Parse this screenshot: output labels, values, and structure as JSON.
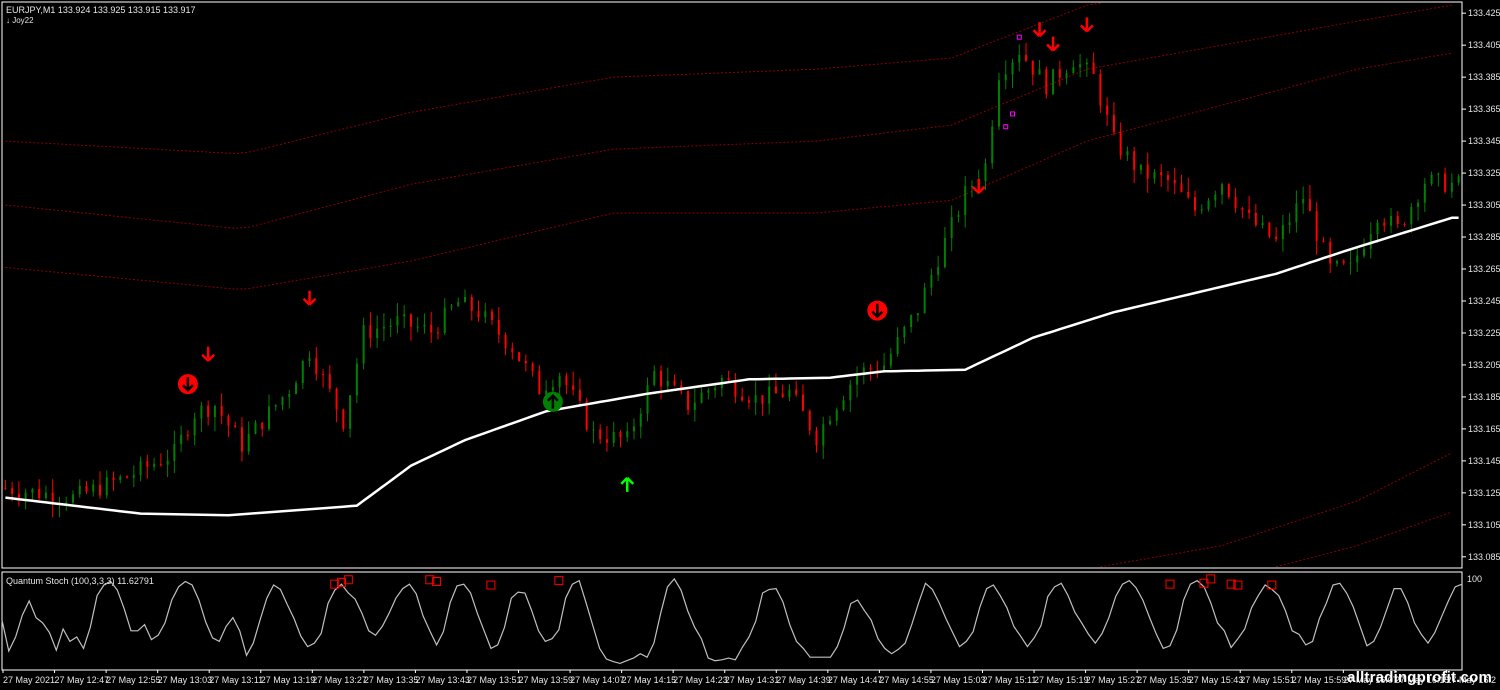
{
  "header": {
    "symbol_line": "EURJPY,M1  133.924 133.925 133.915 133.917",
    "indicator_name": "↓ Joy22"
  },
  "sub_window": {
    "title": "Quantum Stoch (100,3,3,3) 11.62791",
    "scale_max_label": "100"
  },
  "watermark": "alltradingprofit.com",
  "colors": {
    "background": "#000000",
    "bull": "#008000",
    "bear": "#ff0000",
    "moving_average": "#ffffff",
    "bands": "#8b0000",
    "oscillator": "#c0c0c0",
    "arrow_up": "#00ff00",
    "arrow_down": "#ff0000",
    "signal_box": "#ff00ff",
    "axis_text": "#e6e6e6"
  },
  "chart_data": [
    {
      "type": "candlestick",
      "title": "EURJPY,M1",
      "y_ticks": [
        "133.425",
        "133.405",
        "133.385",
        "133.365",
        "133.345",
        "133.325",
        "133.305",
        "133.285",
        "133.265",
        "133.245",
        "133.225",
        "133.205",
        "133.185",
        "133.165",
        "133.145",
        "133.125",
        "133.105",
        "133.085"
      ],
      "ylim": [
        133.078,
        133.432
      ],
      "x_ticks": [
        "27 May 2021",
        "27 May 12:47",
        "27 May 12:55",
        "27 May 13:03",
        "27 May 13:11",
        "27 May 13:19",
        "27 May 13:27",
        "27 May 13:35",
        "27 May 13:43",
        "27 May 13:51",
        "27 May 13:59",
        "27 May 14:07",
        "27 May 14:15",
        "27 May 14:23",
        "27 May 14:31",
        "27 May 14:39",
        "27 May 14:47",
        "27 May 14:55",
        "27 May 15:03",
        "27 May 15:11",
        "27 May 15:19",
        "27 May 15:27",
        "27 May 15:35",
        "27 May 15:43",
        "27 May 15:51",
        "27 May 15:59",
        "27 May 16:07",
        "27 May 16:15",
        "27 May 16:2"
      ],
      "bar_count": 216,
      "price_path": [
        [
          0,
          133.128
        ],
        [
          10,
          133.122
        ],
        [
          18,
          133.135
        ],
        [
          25,
          133.15
        ],
        [
          28,
          133.175
        ],
        [
          31,
          133.18
        ],
        [
          35,
          133.155
        ],
        [
          42,
          133.19
        ],
        [
          45,
          133.214
        ],
        [
          50,
          133.17
        ],
        [
          53,
          133.225
        ],
        [
          58,
          133.232
        ],
        [
          63,
          133.226
        ],
        [
          67,
          133.244
        ],
        [
          70,
          133.238
        ],
        [
          75,
          133.216
        ],
        [
          79,
          133.19
        ],
        [
          82,
          133.2
        ],
        [
          87,
          133.162
        ],
        [
          92,
          133.158
        ],
        [
          96,
          133.2
        ],
        [
          101,
          133.18
        ],
        [
          106,
          133.196
        ],
        [
          111,
          133.184
        ],
        [
          116,
          133.188
        ],
        [
          120,
          133.16
        ],
        [
          122,
          133.175
        ],
        [
          126,
          133.2
        ],
        [
          130,
          133.205
        ],
        [
          135,
          133.24
        ],
        [
          138,
          133.272
        ],
        [
          142,
          133.312
        ],
        [
          145,
          133.33
        ],
        [
          147,
          133.388
        ],
        [
          150,
          133.402
        ],
        [
          154,
          133.38
        ],
        [
          158,
          133.396
        ],
        [
          161,
          133.385
        ],
        [
          164,
          133.345
        ],
        [
          168,
          133.325
        ],
        [
          172,
          133.32
        ],
        [
          176,
          133.302
        ],
        [
          180,
          133.32
        ],
        [
          184,
          133.296
        ],
        [
          188,
          133.282
        ],
        [
          192,
          133.31
        ],
        [
          196,
          133.265
        ],
        [
          199,
          133.265
        ],
        [
          203,
          133.3
        ],
        [
          206,
          133.29
        ],
        [
          210,
          133.32
        ],
        [
          214,
          133.318
        ]
      ],
      "moving_average": [
        [
          0,
          133.122
        ],
        [
          20,
          133.112
        ],
        [
          33,
          133.111
        ],
        [
          52,
          133.117
        ],
        [
          60,
          133.142
        ],
        [
          68,
          133.158
        ],
        [
          80,
          133.176
        ],
        [
          95,
          133.187
        ],
        [
          110,
          133.196
        ],
        [
          122,
          133.197
        ],
        [
          130,
          133.201
        ],
        [
          142,
          133.202
        ],
        [
          152,
          133.222
        ],
        [
          164,
          133.238
        ],
        [
          175,
          133.249
        ],
        [
          188,
          133.262
        ],
        [
          198,
          133.276
        ],
        [
          214,
          133.297
        ]
      ],
      "bands": [
        {
          "name": "upper-1",
          "points": [
            [
              0,
              133.345
            ],
            [
              35,
              133.337
            ],
            [
              60,
              133.363
            ],
            [
              90,
              133.385
            ],
            [
              120,
              133.39
            ],
            [
              140,
              133.397
            ],
            [
              160,
              133.43
            ],
            [
              200,
              133.455
            ],
            [
              214,
              133.462
            ]
          ]
        },
        {
          "name": "upper-2",
          "points": [
            [
              0,
              133.305
            ],
            [
              35,
              133.29
            ],
            [
              60,
              133.318
            ],
            [
              90,
              133.34
            ],
            [
              120,
              133.345
            ],
            [
              140,
              133.355
            ],
            [
              160,
              133.39
            ],
            [
              200,
              133.42
            ],
            [
              214,
              133.43
            ]
          ]
        },
        {
          "name": "upper-3",
          "points": [
            [
              0,
              133.266
            ],
            [
              35,
              133.252
            ],
            [
              60,
              133.27
            ],
            [
              90,
              133.3
            ],
            [
              120,
              133.3
            ],
            [
              140,
              133.308
            ],
            [
              160,
              133.345
            ],
            [
              200,
              133.39
            ],
            [
              214,
              133.4
            ]
          ]
        },
        {
          "name": "lower-1",
          "points": [
            [
              150,
              133.07
            ],
            [
              180,
              133.092
            ],
            [
              200,
              133.12
            ],
            [
              214,
              133.15
            ]
          ]
        },
        {
          "name": "lower-2",
          "points": [
            [
              150,
              133.05
            ],
            [
              180,
              133.07
            ],
            [
              200,
              133.092
            ],
            [
              214,
              133.113
            ]
          ]
        }
      ],
      "markers": [
        {
          "type": "down-arrow",
          "bar": 30,
          "price": 133.212
        },
        {
          "type": "down-arrow",
          "bar": 45,
          "price": 133.247
        },
        {
          "type": "stop-down-circle",
          "bar": 27,
          "price": 133.193
        },
        {
          "type": "stop-up-circle",
          "bar": 81,
          "price": 133.182
        },
        {
          "type": "up-arrow",
          "bar": 92,
          "price": 133.13
        },
        {
          "type": "stop-down-circle",
          "bar": 129,
          "price": 133.239
        },
        {
          "type": "down-arrow",
          "bar": 144,
          "price": 133.317
        },
        {
          "type": "down-arrow",
          "bar": 153,
          "price": 133.415
        },
        {
          "type": "down-arrow",
          "bar": 155,
          "price": 133.406
        },
        {
          "type": "down-arrow",
          "bar": 160,
          "price": 133.418
        },
        {
          "type": "box",
          "bar": 148,
          "price": 133.354
        },
        {
          "type": "box",
          "bar": 149,
          "price": 133.362
        },
        {
          "type": "box",
          "bar": 150,
          "price": 133.41
        }
      ]
    },
    {
      "type": "line",
      "title": "Quantum Stoch (100,3,3,3) 11.62791",
      "ylim": [
        0,
        100
      ],
      "values": [
        52,
        17,
        33,
        58,
        74,
        55,
        49,
        38,
        18,
        42,
        28,
        33,
        20,
        44,
        80,
        92,
        96,
        86,
        65,
        40,
        40,
        47,
        30,
        35,
        49,
        75,
        90,
        96,
        92,
        75,
        50,
        32,
        28,
        45,
        55,
        40,
        12,
        26,
        52,
        77,
        92,
        87,
        70,
        54,
        34,
        22,
        26,
        37,
        71,
        86,
        93,
        83,
        76,
        60,
        40,
        35,
        45,
        60,
        77,
        88,
        93,
        82,
        57,
        40,
        24,
        39,
        72,
        91,
        93,
        83,
        60,
        40,
        20,
        24,
        44,
        77,
        84,
        83,
        63,
        40,
        28,
        31,
        41,
        77,
        93,
        97,
        72,
        46,
        20,
        8,
        5,
        3,
        6,
        9,
        14,
        10,
        26,
        60,
        90,
        99,
        86,
        62,
        44,
        31,
        9,
        6,
        7,
        9,
        7,
        21,
        33,
        51,
        83,
        87,
        88,
        73,
        47,
        28,
        20,
        10,
        10,
        10,
        10,
        22,
        43,
        71,
        75,
        63,
        52,
        31,
        20,
        14,
        19,
        26,
        48,
        72,
        94,
        87,
        72,
        54,
        38,
        22,
        28,
        39,
        67,
        88,
        92,
        80,
        66,
        45,
        34,
        22,
        32,
        46,
        79,
        90,
        94,
        80,
        61,
        49,
        36,
        26,
        37,
        55,
        79,
        93,
        97,
        89,
        75,
        55,
        36,
        20,
        23,
        41,
        75,
        93,
        97,
        90,
        72,
        49,
        40,
        21,
        31,
        42,
        66,
        80,
        92,
        87,
        80,
        63,
        40,
        36,
        24,
        28,
        54,
        71,
        92,
        94,
        83,
        67,
        45,
        23,
        28,
        44,
        66,
        88,
        88,
        72,
        49,
        36,
        26,
        38,
        56,
        74,
        90,
        93
      ],
      "signal_boxes": [
        {
          "index": 49,
          "value": 93
        },
        {
          "index": 50,
          "value": 95
        },
        {
          "index": 51,
          "value": 98
        },
        {
          "index": 63,
          "value": 98
        },
        {
          "index": 64,
          "value": 96
        },
        {
          "index": 72,
          "value": 92
        },
        {
          "index": 82,
          "value": 97
        },
        {
          "index": 172,
          "value": 93
        },
        {
          "index": 177,
          "value": 94
        },
        {
          "index": 178,
          "value": 99
        },
        {
          "index": 181,
          "value": 93
        },
        {
          "index": 182,
          "value": 92
        },
        {
          "index": 187,
          "value": 92
        }
      ]
    }
  ]
}
